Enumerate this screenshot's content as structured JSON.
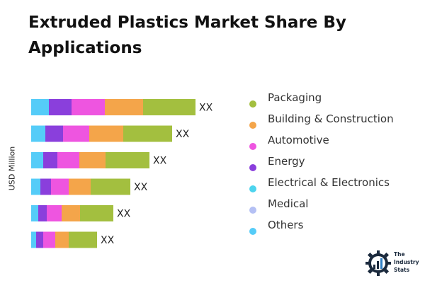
{
  "title": "Extruded Plastics Market Share By Applications",
  "colors": {
    "Packaging": "#a3bf3f",
    "Building & Construction": "#f4a54a",
    "Automotive": "#ee55e0",
    "Energy": "#8a3fdc",
    "Electrical & Electronics": "#4dd4ee",
    "Medical": "#b4c0f4",
    "Others": "#55ccf8"
  },
  "logo": {
    "text": "The Industry Stats",
    "icon": "gear-bar-chart-icon"
  },
  "chart_data": {
    "type": "bar",
    "orientation": "horizontal",
    "stacked": true,
    "title": "Extruded Plastics Market Share By Applications",
    "ylabel": "USD Million",
    "xlabel": "",
    "grid": false,
    "legend_position": "right",
    "categories": [
      "",
      "",
      "",
      "",
      "",
      ""
    ],
    "bar_labels": [
      "XX",
      "XX",
      "XX",
      "XX",
      "XX",
      "XX"
    ],
    "series": [
      {
        "name": "Others",
        "values": [
          25,
          20,
          17,
          13,
          10,
          7
        ]
      },
      {
        "name": "Electrical & Electronics",
        "values": [
          0,
          0,
          0,
          0,
          0,
          0
        ]
      },
      {
        "name": "Medical",
        "values": [
          0,
          0,
          0,
          0,
          0,
          0
        ]
      },
      {
        "name": "Energy",
        "values": [
          32,
          25,
          20,
          15,
          12,
          10
        ]
      },
      {
        "name": "Automotive",
        "values": [
          47,
          37,
          31,
          25,
          21,
          17
        ]
      },
      {
        "name": "Building & Construction",
        "values": [
          54,
          48,
          37,
          31,
          26,
          19
        ]
      },
      {
        "name": "Packaging",
        "values": [
          74,
          69,
          62,
          56,
          47,
          40
        ]
      }
    ],
    "legend": [
      "Packaging",
      "Building & Construction",
      "Automotive",
      "Energy",
      "Electrical & Electronics",
      "Medical",
      "Others"
    ]
  }
}
